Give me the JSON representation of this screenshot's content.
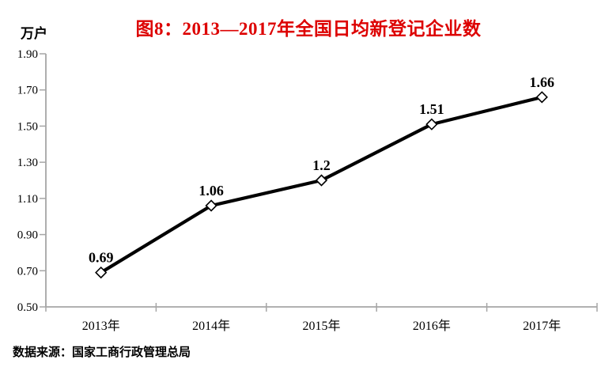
{
  "page": {
    "title": "图8：2013—2017年全国日均新登记企业数",
    "unit_label": "万户",
    "source": "数据来源：国家工商行政管理总局"
  },
  "chart_data": {
    "type": "line",
    "title": "图8：2013—2017年全国日均新登记企业数",
    "categories": [
      "2013年",
      "2014年",
      "2015年",
      "2016年",
      "2017年"
    ],
    "series": [
      {
        "name": "全国日均新登记企业数",
        "values": [
          0.69,
          1.06,
          1.2,
          1.51,
          1.66
        ]
      }
    ],
    "point_labels": [
      "0.69",
      "1.06",
      "1.2",
      "1.51",
      "1.66"
    ],
    "ylabel": "万户",
    "xlabel": "",
    "ylim": [
      0.5,
      1.9
    ],
    "ytick_labels": [
      "0.50",
      "0.70",
      "0.90",
      "1.10",
      "1.30",
      "1.50",
      "1.70",
      "1.90"
    ],
    "grid": false,
    "legend_position": "none",
    "marker": "open-diamond",
    "colors": {
      "title": "#dd0000",
      "line": "#000000",
      "marker_fill": "#ffffff",
      "marker_stroke": "#000000",
      "axis": "#a6a6a6",
      "text": "#000000"
    }
  }
}
